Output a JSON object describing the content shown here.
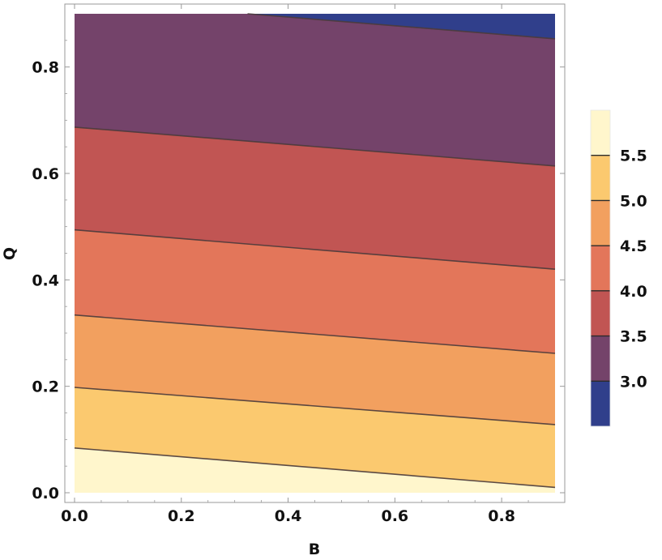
{
  "chart_data": {
    "type": "contour",
    "title": "",
    "xlabel": "B",
    "ylabel": "Q",
    "xlim": [
      0.0,
      0.9
    ],
    "ylim": [
      0.0,
      0.9
    ],
    "x_ticks": [
      {
        "value": 0.0,
        "label": "0.0"
      },
      {
        "value": 0.2,
        "label": "0.2"
      },
      {
        "value": 0.4,
        "label": "0.4"
      },
      {
        "value": 0.6,
        "label": "0.6"
      },
      {
        "value": 0.8,
        "label": "0.8"
      }
    ],
    "y_ticks": [
      {
        "value": 0.0,
        "label": "0.0"
      },
      {
        "value": 0.2,
        "label": "0.2"
      },
      {
        "value": 0.4,
        "label": "0.4"
      },
      {
        "value": 0.6,
        "label": "0.6"
      },
      {
        "value": 0.8,
        "label": "0.8"
      }
    ],
    "contour_lines": [
      {
        "level": 5.5,
        "points": [
          [
            0.0,
            0.084
          ],
          [
            0.9,
            0.01
          ]
        ]
      },
      {
        "level": 5.0,
        "points": [
          [
            0.0,
            0.198
          ],
          [
            0.9,
            0.128
          ]
        ]
      },
      {
        "level": 4.5,
        "points": [
          [
            0.0,
            0.334
          ],
          [
            0.9,
            0.262
          ]
        ]
      },
      {
        "level": 4.0,
        "points": [
          [
            0.0,
            0.494
          ],
          [
            0.9,
            0.42
          ]
        ]
      },
      {
        "level": 3.5,
        "points": [
          [
            0.0,
            0.687
          ],
          [
            0.9,
            0.614
          ]
        ]
      },
      {
        "level": 3.0,
        "points": [
          [
            0.324,
            0.9
          ],
          [
            0.9,
            0.853
          ]
        ]
      }
    ],
    "fill_bands": [
      {
        "min": 5.5,
        "max": 6.0,
        "color": "#fff6cc"
      },
      {
        "min": 5.0,
        "max": 5.5,
        "color": "#fbc96f"
      },
      {
        "min": 4.5,
        "max": 5.0,
        "color": "#f2a05f"
      },
      {
        "min": 4.0,
        "max": 4.5,
        "color": "#e3765a"
      },
      {
        "min": 3.5,
        "max": 4.0,
        "color": "#c15553"
      },
      {
        "min": 3.0,
        "max": 3.5,
        "color": "#74436a"
      },
      {
        "min": 2.5,
        "max": 3.0,
        "color": "#303f8b"
      }
    ],
    "legend": {
      "placement": "right",
      "range": [
        2.5,
        6.0
      ],
      "ticks": [
        {
          "value": 3.0,
          "label": "3.0"
        },
        {
          "value": 3.5,
          "label": "3.5"
        },
        {
          "value": 4.0,
          "label": "4.0"
        },
        {
          "value": 4.5,
          "label": "4.5"
        },
        {
          "value": 5.0,
          "label": "5.0"
        },
        {
          "value": 5.5,
          "label": "5.5"
        }
      ]
    },
    "line_color": "#4a3a3a",
    "frame_color": "#999999",
    "grid": false
  }
}
